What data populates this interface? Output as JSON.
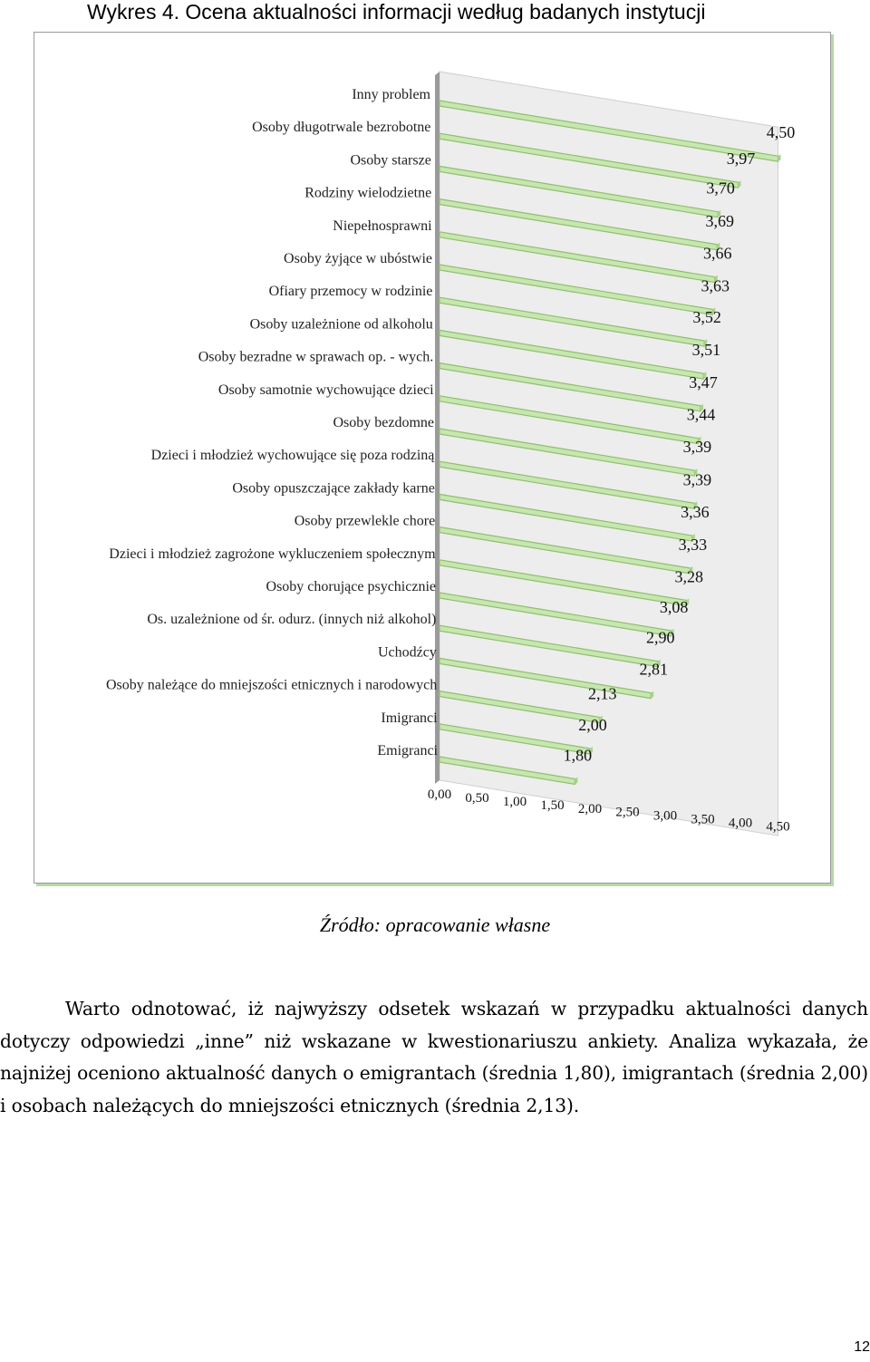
{
  "figure_title": "Wykres 4. Ocena aktualności informacji według badanych instytucji",
  "source_text": "Źródło: opracowanie własne",
  "paragraph": "Warto odnotować, iż najwyższy odsetek wskazań w przypadku aktualności danych dotyczy odpowiedzi „inne” niż wskazane w kwestionariuszu ankiety. Analiza wykazała, że najniżej oceniono aktualność danych o emigrantach (średnia 1,80), imigrantach (średnia 2,00) i osobach należących do mniejszości etnicznych (średnia 2,13).",
  "page_number": "12",
  "colors": {
    "bar_fill": "#c7e6b0",
    "bar_stroke": "#8fbf6e",
    "wall": "#ededed",
    "frame_shadow": "#b9d7a6"
  },
  "chart_data": {
    "type": "bar",
    "orientation": "horizontal",
    "style": "3d",
    "categories": [
      "Inny problem",
      "Osoby długotrwale bezrobotne",
      "Osoby starsze",
      "Rodziny wielodzietne",
      "Niepełnosprawni",
      "Osoby żyjące w ubóstwie",
      "Ofiary przemocy w rodzinie",
      "Osoby uzależnione od alkoholu",
      "Osoby bezradne w sprawach op. - wych.",
      "Osoby samotnie wychowujące dzieci",
      "Osoby bezdomne",
      "Dzieci i młodzież wychowujące się poza rodziną",
      "Osoby opuszczające zakłady karne",
      "Osoby przewlekle chore",
      "Dzieci i młodzież zagrożone wykluczeniem społecznym",
      "Osoby chorujące psychicznie",
      "Os. uzależnione od śr. odurz. (innych niż alkohol)",
      "Uchodźcy",
      "Osoby należące do mniejszości etnicznych i narodowych",
      "Imigranci",
      "Emigranci"
    ],
    "values": [
      4.5,
      3.97,
      3.7,
      3.69,
      3.66,
      3.63,
      3.52,
      3.51,
      3.47,
      3.44,
      3.39,
      3.39,
      3.36,
      3.33,
      3.28,
      3.08,
      2.9,
      2.81,
      2.13,
      2.0,
      1.8
    ],
    "value_labels": [
      "4,50",
      "3,97",
      "3,70",
      "3,69",
      "3,66",
      "3,63",
      "3,52",
      "3,51",
      "3,47",
      "3,44",
      "3,39",
      "3,39",
      "3,36",
      "3,33",
      "3,28",
      "3,08",
      "2,90",
      "2,81",
      "2,13",
      "2,00",
      "1,80"
    ],
    "x_ticks": [
      "0,00",
      "0,50",
      "1,00",
      "1,50",
      "2,00",
      "2,50",
      "3,00",
      "3,50",
      "4,00",
      "4,50"
    ],
    "xlim": [
      0,
      4.5
    ],
    "grid": false,
    "legend": "none"
  }
}
